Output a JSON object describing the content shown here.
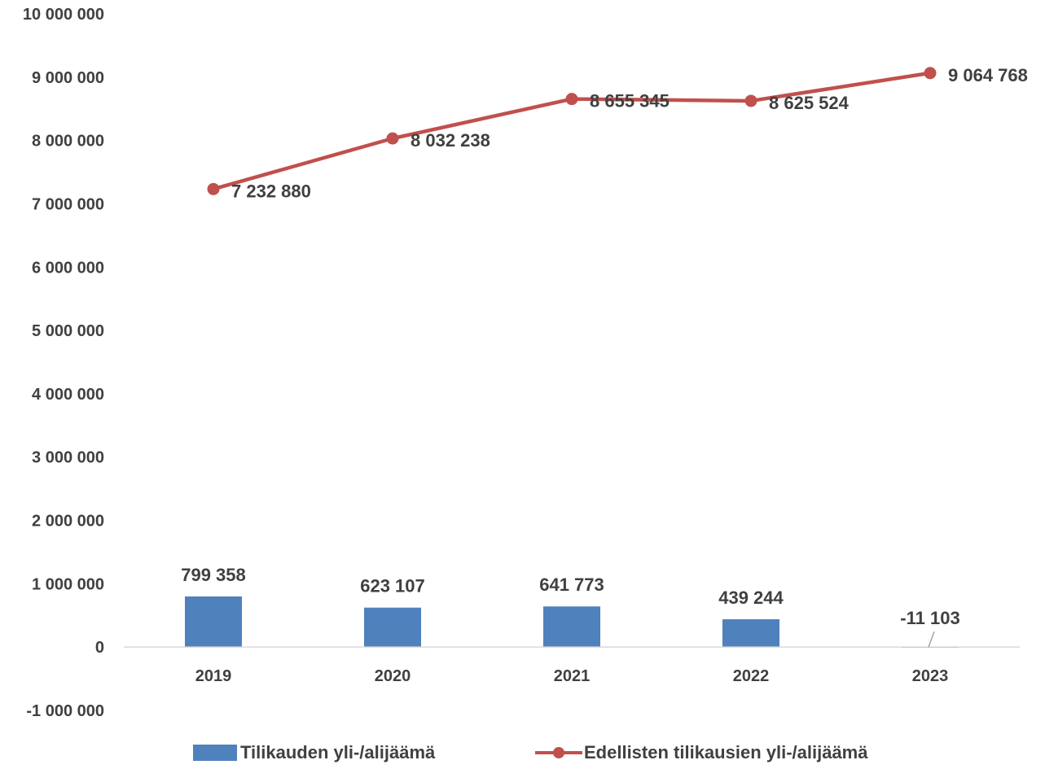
{
  "chart_data": {
    "type": "bar",
    "categories": [
      "2019",
      "2020",
      "2021",
      "2022",
      "2023"
    ],
    "series": [
      {
        "name": "Tilikauden yli-/alijäämä",
        "type": "bar",
        "color": "#4f81bd",
        "values": [
          799358,
          623107,
          641773,
          439244,
          -11103
        ],
        "labels": [
          "799 358",
          "623 107",
          "641 773",
          "439 244",
          "-11 103"
        ]
      },
      {
        "name": "Edellisten tilikausien yli-/alijäämä",
        "type": "line",
        "color": "#c0504d",
        "values": [
          7232880,
          8032238,
          8655345,
          8625524,
          9064768
        ],
        "labels": [
          "7 232 880",
          "8 032 238",
          "8 655 345",
          "8 625 524",
          "9 064 768"
        ]
      }
    ],
    "ylim": [
      -1000000,
      10000000
    ],
    "yticks": [
      -1000000,
      0,
      1000000,
      2000000,
      3000000,
      4000000,
      5000000,
      6000000,
      7000000,
      8000000,
      9000000,
      10000000
    ],
    "ytick_labels": [
      "-1 000 000",
      "0",
      "1 000 000",
      "2 000 000",
      "3 000 000",
      "4 000 000",
      "5 000 000",
      "6 000 000",
      "7 000 000",
      "8 000 000",
      "9 000 000",
      "10 000 000"
    ],
    "grid": false,
    "legend_position": "bottom",
    "axis_color": "#d9d9d9",
    "text_color": "#404040"
  }
}
